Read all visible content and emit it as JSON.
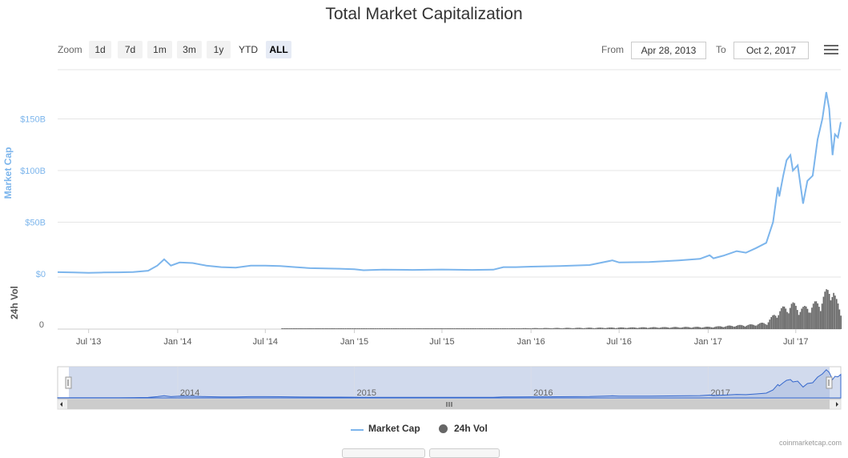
{
  "title": "Total Market Capitalization",
  "zoom": {
    "label": "Zoom",
    "buttons": [
      "1d",
      "7d",
      "1m",
      "3m",
      "1y",
      "YTD",
      "ALL"
    ],
    "active": "ALL"
  },
  "range": {
    "from_label": "From",
    "from_value": "Apr 28, 2013",
    "to_label": "To",
    "to_value": "Oct 2, 2017"
  },
  "menu_icon": "hamburger-menu-icon",
  "legend": {
    "market_cap": "Market Cap",
    "volume": "24h Vol"
  },
  "credit": "coinmarketcap.com",
  "colors": {
    "market_cap": "#7cb5ec",
    "volume": "#666666",
    "navigator_fill": "#c9d4ea",
    "navigator_line": "#3366cc"
  },
  "chart_data": {
    "type": "line",
    "title": "Total Market Capitalization",
    "ylabel": "Market Cap",
    "ylabel_volume": "24h Vol",
    "y_ticks": [
      "$0",
      "$50B",
      "$100B",
      "$150B"
    ],
    "y_tick_values": [
      0,
      50,
      100,
      150
    ],
    "ylim": [
      0,
      150
    ],
    "volume_tick": "0",
    "x_ticks": [
      "Jul '13",
      "Jan '14",
      "Jul '14",
      "Jan '15",
      "Jul '15",
      "Jan '16",
      "Jul '16",
      "Jan '17",
      "Jul '17"
    ],
    "x_tick_dates": [
      "2013-07-01",
      "2014-01-01",
      "2014-07-01",
      "2015-01-01",
      "2015-07-01",
      "2016-01-01",
      "2016-07-01",
      "2017-01-01",
      "2017-07-01"
    ],
    "navigator_ticks": [
      "2014",
      "2015",
      "2016",
      "2017"
    ],
    "navigator_tick_dates": [
      "2014-01-01",
      "2015-01-01",
      "2016-01-01",
      "2017-01-01"
    ],
    "date_range": [
      "2013-04-28",
      "2017-10-02"
    ],
    "grid": true,
    "legend_position": "bottom-center",
    "series": [
      {
        "name": "Market Cap",
        "unit": "B USD",
        "points": [
          [
            "2013-04-28",
            1.6
          ],
          [
            "2013-06-01",
            1.3
          ],
          [
            "2013-07-01",
            1.0
          ],
          [
            "2013-08-01",
            1.3
          ],
          [
            "2013-09-01",
            1.5
          ],
          [
            "2013-10-01",
            1.8
          ],
          [
            "2013-11-01",
            3.0
          ],
          [
            "2013-11-20",
            8.0
          ],
          [
            "2013-12-04",
            14.0
          ],
          [
            "2013-12-10",
            11.5
          ],
          [
            "2013-12-18",
            8.0
          ],
          [
            "2014-01-05",
            11.0
          ],
          [
            "2014-02-01",
            10.5
          ],
          [
            "2014-03-01",
            8.0
          ],
          [
            "2014-04-01",
            6.5
          ],
          [
            "2014-05-01",
            6.0
          ],
          [
            "2014-06-01",
            8.0
          ],
          [
            "2014-07-01",
            8.0
          ],
          [
            "2014-08-01",
            7.5
          ],
          [
            "2014-09-01",
            6.5
          ],
          [
            "2014-10-01",
            5.5
          ],
          [
            "2014-11-01",
            5.2
          ],
          [
            "2014-12-01",
            5.0
          ],
          [
            "2015-01-01",
            4.5
          ],
          [
            "2015-01-20",
            3.5
          ],
          [
            "2015-03-01",
            4.0
          ],
          [
            "2015-05-01",
            3.8
          ],
          [
            "2015-07-01",
            4.2
          ],
          [
            "2015-09-01",
            3.8
          ],
          [
            "2015-10-15",
            4.0
          ],
          [
            "2015-11-05",
            6.5
          ],
          [
            "2015-12-01",
            6.5
          ],
          [
            "2016-01-01",
            7.0
          ],
          [
            "2016-03-01",
            7.5
          ],
          [
            "2016-05-01",
            8.5
          ],
          [
            "2016-06-17",
            13.0
          ],
          [
            "2016-07-01",
            11.0
          ],
          [
            "2016-09-01",
            11.5
          ],
          [
            "2016-11-01",
            13.0
          ],
          [
            "2016-12-15",
            14.5
          ],
          [
            "2017-01-04",
            18.0
          ],
          [
            "2017-01-12",
            15.0
          ],
          [
            "2017-02-01",
            17.5
          ],
          [
            "2017-03-01",
            22.0
          ],
          [
            "2017-03-20",
            20.5
          ],
          [
            "2017-04-10",
            25.0
          ],
          [
            "2017-05-01",
            30.0
          ],
          [
            "2017-05-15",
            50.0
          ],
          [
            "2017-05-25",
            84.0
          ],
          [
            "2017-05-28",
            75.0
          ],
          [
            "2017-06-05",
            95.0
          ],
          [
            "2017-06-12",
            110.0
          ],
          [
            "2017-06-20",
            115.0
          ],
          [
            "2017-06-25",
            100.0
          ],
          [
            "2017-07-05",
            105.0
          ],
          [
            "2017-07-16",
            68.0
          ],
          [
            "2017-07-25",
            90.0
          ],
          [
            "2017-08-05",
            95.0
          ],
          [
            "2017-08-15",
            130.0
          ],
          [
            "2017-08-25",
            150.0
          ],
          [
            "2017-09-02",
            176.0
          ],
          [
            "2017-09-08",
            160.0
          ],
          [
            "2017-09-15",
            115.0
          ],
          [
            "2017-09-20",
            135.0
          ],
          [
            "2017-09-26",
            132.0
          ],
          [
            "2017-10-02",
            147.0
          ]
        ]
      },
      {
        "name": "24h Vol",
        "unit": "B USD",
        "points": [
          [
            "2013-04-28",
            0.0
          ],
          [
            "2015-11-05",
            0.1
          ],
          [
            "2016-06-17",
            0.2
          ],
          [
            "2017-01-05",
            0.3
          ],
          [
            "2017-03-01",
            0.5
          ],
          [
            "2017-04-01",
            0.6
          ],
          [
            "2017-05-01",
            0.9
          ],
          [
            "2017-05-25",
            2.5
          ],
          [
            "2017-06-10",
            3.0
          ],
          [
            "2017-06-20",
            3.4
          ],
          [
            "2017-07-16",
            2.8
          ],
          [
            "2017-08-15",
            3.6
          ],
          [
            "2017-09-02",
            5.0
          ],
          [
            "2017-09-14",
            6.0
          ],
          [
            "2017-09-20",
            4.0
          ],
          [
            "2017-10-02",
            2.2
          ]
        ]
      }
    ]
  }
}
